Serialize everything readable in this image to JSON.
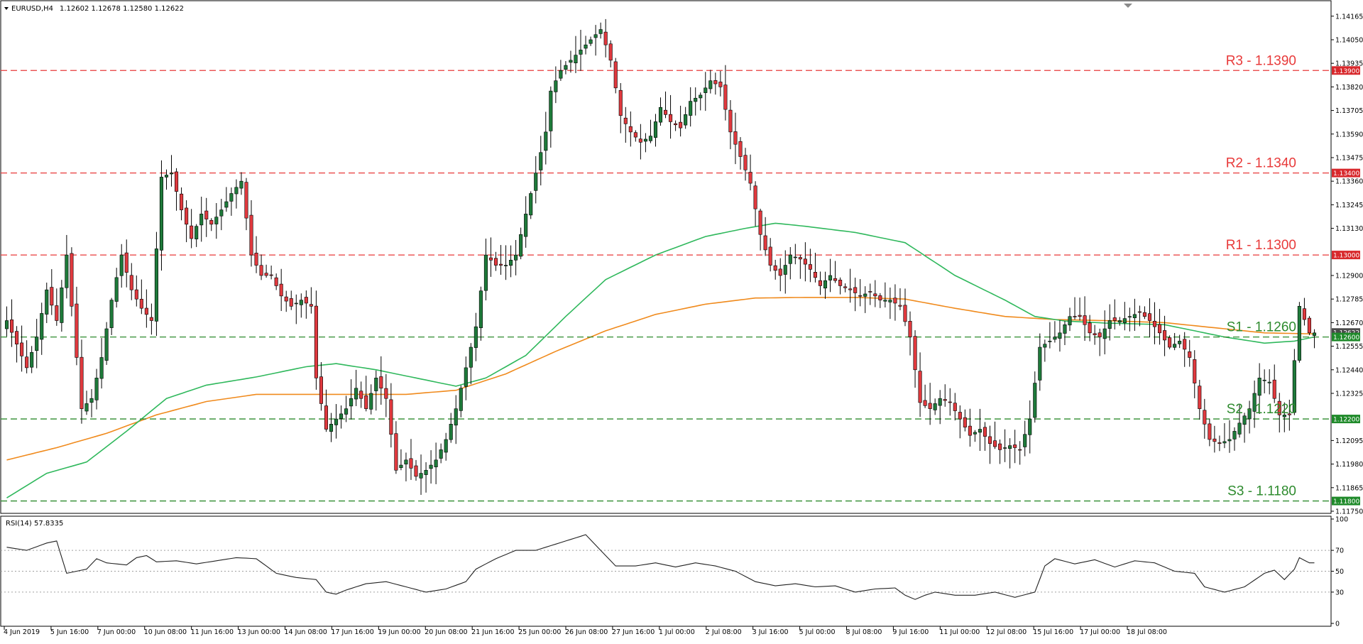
{
  "header": {
    "symbol": "EURUSD,H4",
    "ohlc": "1.12602 1.12678 1.12580 1.12622"
  },
  "rsi_header": "RSI(14) 57.8335",
  "colors": {
    "bull": "#1e7a3a",
    "bear": "#e0393e",
    "resistance": "#e83a3a",
    "support": "#2e8b2e",
    "sma_fast": "#2fb85c",
    "sma_slow": "#f08a1c",
    "rsi_line": "#222222"
  },
  "chart_data": [
    {
      "type": "candlestick",
      "title": "EURUSD,H4",
      "ylim": [
        1.1175,
        1.1423
      ],
      "y_ticks": [
        "1.14165",
        "1.14050",
        "1.13935",
        "1.13820",
        "1.13705",
        "1.13590",
        "1.13475",
        "1.13360",
        "1.13245",
        "1.13130",
        "1.12900",
        "1.12785",
        "1.12670",
        "1.12555",
        "1.12440",
        "1.12325",
        "1.12095",
        "1.11980",
        "1.11865",
        "1.11750"
      ],
      "x_ticks": [
        "4 Jun 2019",
        "5 Jun 16:00",
        "7 Jun 00:00",
        "10 Jun 08:00",
        "11 Jun 16:00",
        "13 Jun 00:00",
        "14 Jun 08:00",
        "17 Jun 16:00",
        "19 Jun 00:00",
        "20 Jun 08:00",
        "21 Jun 16:00",
        "25 Jun 00:00",
        "26 Jun 08:00",
        "27 Jun 16:00",
        "1 Jul 00:00",
        "2 Jul 08:00",
        "3 Jul 16:00",
        "5 Jul 00:00",
        "8 Jul 08:00",
        "9 Jul 16:00",
        "11 Jul 00:00",
        "12 Jul 08:00",
        "15 Jul 16:00",
        "17 Jul 00:00",
        "18 Jul 08:00"
      ],
      "price_tags": [
        {
          "value": 1.139,
          "text": "1.13900",
          "kind": "resistance"
        },
        {
          "value": 1.134,
          "text": "1.13400",
          "kind": "resistance"
        },
        {
          "value": 1.13,
          "text": "1.13000",
          "kind": "resistance"
        },
        {
          "value": 1.12622,
          "text": "1.12622",
          "kind": "current"
        },
        {
          "value": 1.126,
          "text": "1.12600",
          "kind": "support"
        },
        {
          "value": 1.122,
          "text": "1.12200",
          "kind": "support"
        },
        {
          "value": 1.118,
          "text": "1.11800",
          "kind": "support"
        }
      ],
      "levels": [
        {
          "name": "R3",
          "label": "R3 - 1.1390",
          "value": 1.139,
          "kind": "resistance"
        },
        {
          "name": "R2",
          "label": "R2 - 1.1340",
          "value": 1.134,
          "kind": "resistance"
        },
        {
          "name": "R1",
          "label": "R1 - 1.1300",
          "value": 1.13,
          "kind": "resistance"
        },
        {
          "name": "S1",
          "label": "S1 - 1.1260",
          "value": 1.126,
          "kind": "support"
        },
        {
          "name": "S2",
          "label": "S2 - 1.1220",
          "value": 1.122,
          "kind": "support"
        },
        {
          "name": "S3",
          "label": "S3 - 1.1180",
          "value": 1.118,
          "kind": "support"
        }
      ],
      "close_points": [
        [
          0,
          1.1268
        ],
        [
          4,
          1.1245
        ],
        [
          6,
          1.126
        ],
        [
          8,
          1.1283
        ],
        [
          10,
          1.1268
        ],
        [
          12,
          1.13
        ],
        [
          14,
          1.125
        ],
        [
          15,
          1.1225
        ],
        [
          17,
          1.123
        ],
        [
          19,
          1.125
        ],
        [
          21,
          1.1278
        ],
        [
          23,
          1.13
        ],
        [
          25,
          1.1283
        ],
        [
          27,
          1.1274
        ],
        [
          29,
          1.1268
        ],
        [
          31,
          1.1338
        ],
        [
          33,
          1.134
        ],
        [
          35,
          1.1322
        ],
        [
          37,
          1.1308
        ],
        [
          39,
          1.132
        ],
        [
          41,
          1.1315
        ],
        [
          43,
          1.1322
        ],
        [
          45,
          1.133
        ],
        [
          47,
          1.1336
        ],
        [
          49,
          1.13
        ],
        [
          51,
          1.129
        ],
        [
          53,
          1.129
        ],
        [
          55,
          1.128
        ],
        [
          57,
          1.1275
        ],
        [
          59,
          1.1278
        ],
        [
          61,
          1.1275
        ],
        [
          62,
          1.124
        ],
        [
          64,
          1.1215
        ],
        [
          66,
          1.122
        ],
        [
          68,
          1.1225
        ],
        [
          70,
          1.1235
        ],
        [
          72,
          1.1225
        ],
        [
          74,
          1.124
        ],
        [
          76,
          1.123
        ],
        [
          78,
          1.1195
        ],
        [
          80,
          1.12
        ],
        [
          82,
          1.1192
        ],
        [
          84,
          1.1195
        ],
        [
          86,
          1.12
        ],
        [
          88,
          1.121
        ],
        [
          90,
          1.1225
        ],
        [
          92,
          1.1245
        ],
        [
          94,
          1.1265
        ],
        [
          96,
          1.13
        ],
        [
          98,
          1.1295
        ],
        [
          100,
          1.1295
        ],
        [
          102,
          1.13
        ],
        [
          104,
          1.132
        ],
        [
          106,
          1.134
        ],
        [
          108,
          1.136
        ],
        [
          109,
          1.138
        ],
        [
          111,
          1.139
        ],
        [
          113,
          1.1395
        ],
        [
          115,
          1.14
        ],
        [
          117,
          1.1405
        ],
        [
          119,
          1.141
        ],
        [
          121,
          1.1395
        ],
        [
          123,
          1.1368
        ],
        [
          125,
          1.136
        ],
        [
          127,
          1.1355
        ],
        [
          129,
          1.1358
        ],
        [
          131,
          1.1372
        ],
        [
          133,
          1.1365
        ],
        [
          135,
          1.1362
        ],
        [
          137,
          1.1375
        ],
        [
          139,
          1.1378
        ],
        [
          141,
          1.1385
        ],
        [
          143,
          1.1382
        ],
        [
          145,
          1.136
        ],
        [
          147,
          1.1348
        ],
        [
          149,
          1.1335
        ],
        [
          151,
          1.131
        ],
        [
          153,
          1.1295
        ],
        [
          155,
          1.129
        ],
        [
          157,
          1.13
        ],
        [
          159,
          1.1298
        ],
        [
          161,
          1.1293
        ],
        [
          163,
          1.1285
        ],
        [
          165,
          1.129
        ],
        [
          167,
          1.1285
        ],
        [
          169,
          1.1283
        ],
        [
          171,
          1.128
        ],
        [
          173,
          1.1282
        ],
        [
          175,
          1.1278
        ],
        [
          177,
          1.1278
        ],
        [
          179,
          1.1275
        ],
        [
          181,
          1.126
        ],
        [
          183,
          1.1228
        ],
        [
          185,
          1.1225
        ],
        [
          187,
          1.123
        ],
        [
          189,
          1.1228
        ],
        [
          191,
          1.122
        ],
        [
          193,
          1.1212
        ],
        [
          195,
          1.1215
        ],
        [
          197,
          1.1208
        ],
        [
          199,
          1.1205
        ],
        [
          201,
          1.1207
        ],
        [
          203,
          1.1205
        ],
        [
          205,
          1.122
        ],
        [
          207,
          1.1255
        ],
        [
          209,
          1.1258
        ],
        [
          211,
          1.1262
        ],
        [
          213,
          1.127
        ],
        [
          215,
          1.127
        ],
        [
          217,
          1.1262
        ],
        [
          219,
          1.126
        ],
        [
          221,
          1.1268
        ],
        [
          223,
          1.1268
        ],
        [
          225,
          1.127
        ],
        [
          227,
          1.1272
        ],
        [
          229,
          1.1268
        ],
        [
          231,
          1.1262
        ],
        [
          233,
          1.1255
        ],
        [
          235,
          1.1258
        ],
        [
          237,
          1.125
        ],
        [
          239,
          1.1225
        ],
        [
          241,
          1.121
        ],
        [
          243,
          1.1208
        ],
        [
          245,
          1.121
        ],
        [
          247,
          1.1218
        ],
        [
          249,
          1.1225
        ],
        [
          251,
          1.124
        ],
        [
          253,
          1.1238
        ],
        [
          255,
          1.1222
        ],
        [
          257,
          1.1222
        ],
        [
          259,
          1.1275
        ],
        [
          261,
          1.1262
        ],
        [
          262,
          1.1262
        ]
      ],
      "sma_fast_points": [
        [
          0,
          1.11815
        ],
        [
          8,
          1.11935
        ],
        [
          16,
          1.1199
        ],
        [
          24,
          1.1214
        ],
        [
          32,
          1.123
        ],
        [
          40,
          1.12365
        ],
        [
          50,
          1.12405
        ],
        [
          60,
          1.12455
        ],
        [
          66,
          1.1247
        ],
        [
          74,
          1.1244
        ],
        [
          82,
          1.124
        ],
        [
          90,
          1.1236
        ],
        [
          96,
          1.124
        ],
        [
          104,
          1.1251
        ],
        [
          112,
          1.127
        ],
        [
          120,
          1.1288
        ],
        [
          130,
          1.13
        ],
        [
          140,
          1.1309
        ],
        [
          148,
          1.1313
        ],
        [
          154,
          1.13155
        ],
        [
          160,
          1.1314
        ],
        [
          170,
          1.1311
        ],
        [
          180,
          1.1306
        ],
        [
          190,
          1.129
        ],
        [
          200,
          1.1278
        ],
        [
          206,
          1.127
        ],
        [
          212,
          1.12678
        ],
        [
          220,
          1.12668
        ],
        [
          232,
          1.1266
        ],
        [
          244,
          1.126
        ],
        [
          252,
          1.1257
        ],
        [
          258,
          1.1258
        ],
        [
          262,
          1.126
        ]
      ],
      "sma_slow_points": [
        [
          0,
          1.12
        ],
        [
          10,
          1.1206
        ],
        [
          20,
          1.1213
        ],
        [
          30,
          1.1222
        ],
        [
          40,
          1.12285
        ],
        [
          50,
          1.1232
        ],
        [
          60,
          1.1232
        ],
        [
          70,
          1.1232
        ],
        [
          80,
          1.1232
        ],
        [
          90,
          1.1234
        ],
        [
          100,
          1.1242
        ],
        [
          110,
          1.1253
        ],
        [
          120,
          1.1263
        ],
        [
          130,
          1.1271
        ],
        [
          140,
          1.1276
        ],
        [
          150,
          1.1279
        ],
        [
          160,
          1.12793
        ],
        [
          170,
          1.12793
        ],
        [
          180,
          1.12785
        ],
        [
          190,
          1.1274
        ],
        [
          200,
          1.127
        ],
        [
          210,
          1.12685
        ],
        [
          220,
          1.1268
        ],
        [
          232,
          1.1267
        ],
        [
          244,
          1.1264
        ],
        [
          252,
          1.1262
        ],
        [
          262,
          1.12615
        ]
      ]
    },
    {
      "type": "line",
      "title": "RSI(14) 57.8335",
      "ylim": [
        0,
        100
      ],
      "y_ticks": [
        "100",
        "70",
        "50",
        "30",
        "0"
      ],
      "reference_levels": [
        70,
        50,
        30
      ],
      "points": [
        [
          0,
          73
        ],
        [
          4,
          70
        ],
        [
          8,
          77
        ],
        [
          10,
          79
        ],
        [
          12,
          48
        ],
        [
          16,
          52
        ],
        [
          18,
          62
        ],
        [
          20,
          58
        ],
        [
          24,
          56
        ],
        [
          26,
          63
        ],
        [
          28,
          65
        ],
        [
          30,
          59
        ],
        [
          34,
          60
        ],
        [
          38,
          57
        ],
        [
          42,
          60
        ],
        [
          46,
          63
        ],
        [
          50,
          62
        ],
        [
          54,
          48
        ],
        [
          58,
          44
        ],
        [
          62,
          42
        ],
        [
          64,
          30
        ],
        [
          66,
          28
        ],
        [
          68,
          32
        ],
        [
          72,
          38
        ],
        [
          76,
          40
        ],
        [
          80,
          35
        ],
        [
          84,
          30
        ],
        [
          88,
          33
        ],
        [
          92,
          40
        ],
        [
          94,
          52
        ],
        [
          98,
          62
        ],
        [
          102,
          70
        ],
        [
          106,
          70
        ],
        [
          110,
          76
        ],
        [
          114,
          82
        ],
        [
          116,
          85
        ],
        [
          120,
          65
        ],
        [
          122,
          55
        ],
        [
          126,
          55
        ],
        [
          130,
          58
        ],
        [
          134,
          54
        ],
        [
          138,
          58
        ],
        [
          142,
          55
        ],
        [
          146,
          50
        ],
        [
          150,
          40
        ],
        [
          154,
          36
        ],
        [
          158,
          38
        ],
        [
          162,
          35
        ],
        [
          166,
          36
        ],
        [
          170,
          30
        ],
        [
          174,
          33
        ],
        [
          178,
          34
        ],
        [
          180,
          27
        ],
        [
          182,
          23
        ],
        [
          184,
          27
        ],
        [
          186,
          30
        ],
        [
          190,
          27
        ],
        [
          194,
          27
        ],
        [
          198,
          30
        ],
        [
          202,
          25
        ],
        [
          206,
          30
        ],
        [
          208,
          55
        ],
        [
          210,
          62
        ],
        [
          214,
          57
        ],
        [
          218,
          61
        ],
        [
          222,
          54
        ],
        [
          226,
          60
        ],
        [
          230,
          58
        ],
        [
          234,
          50
        ],
        [
          238,
          48
        ],
        [
          240,
          35
        ],
        [
          244,
          30
        ],
        [
          248,
          35
        ],
        [
          252,
          48
        ],
        [
          254,
          51
        ],
        [
          256,
          42
        ],
        [
          258,
          52
        ],
        [
          259,
          63
        ],
        [
          261,
          58
        ],
        [
          262,
          58
        ]
      ]
    }
  ]
}
